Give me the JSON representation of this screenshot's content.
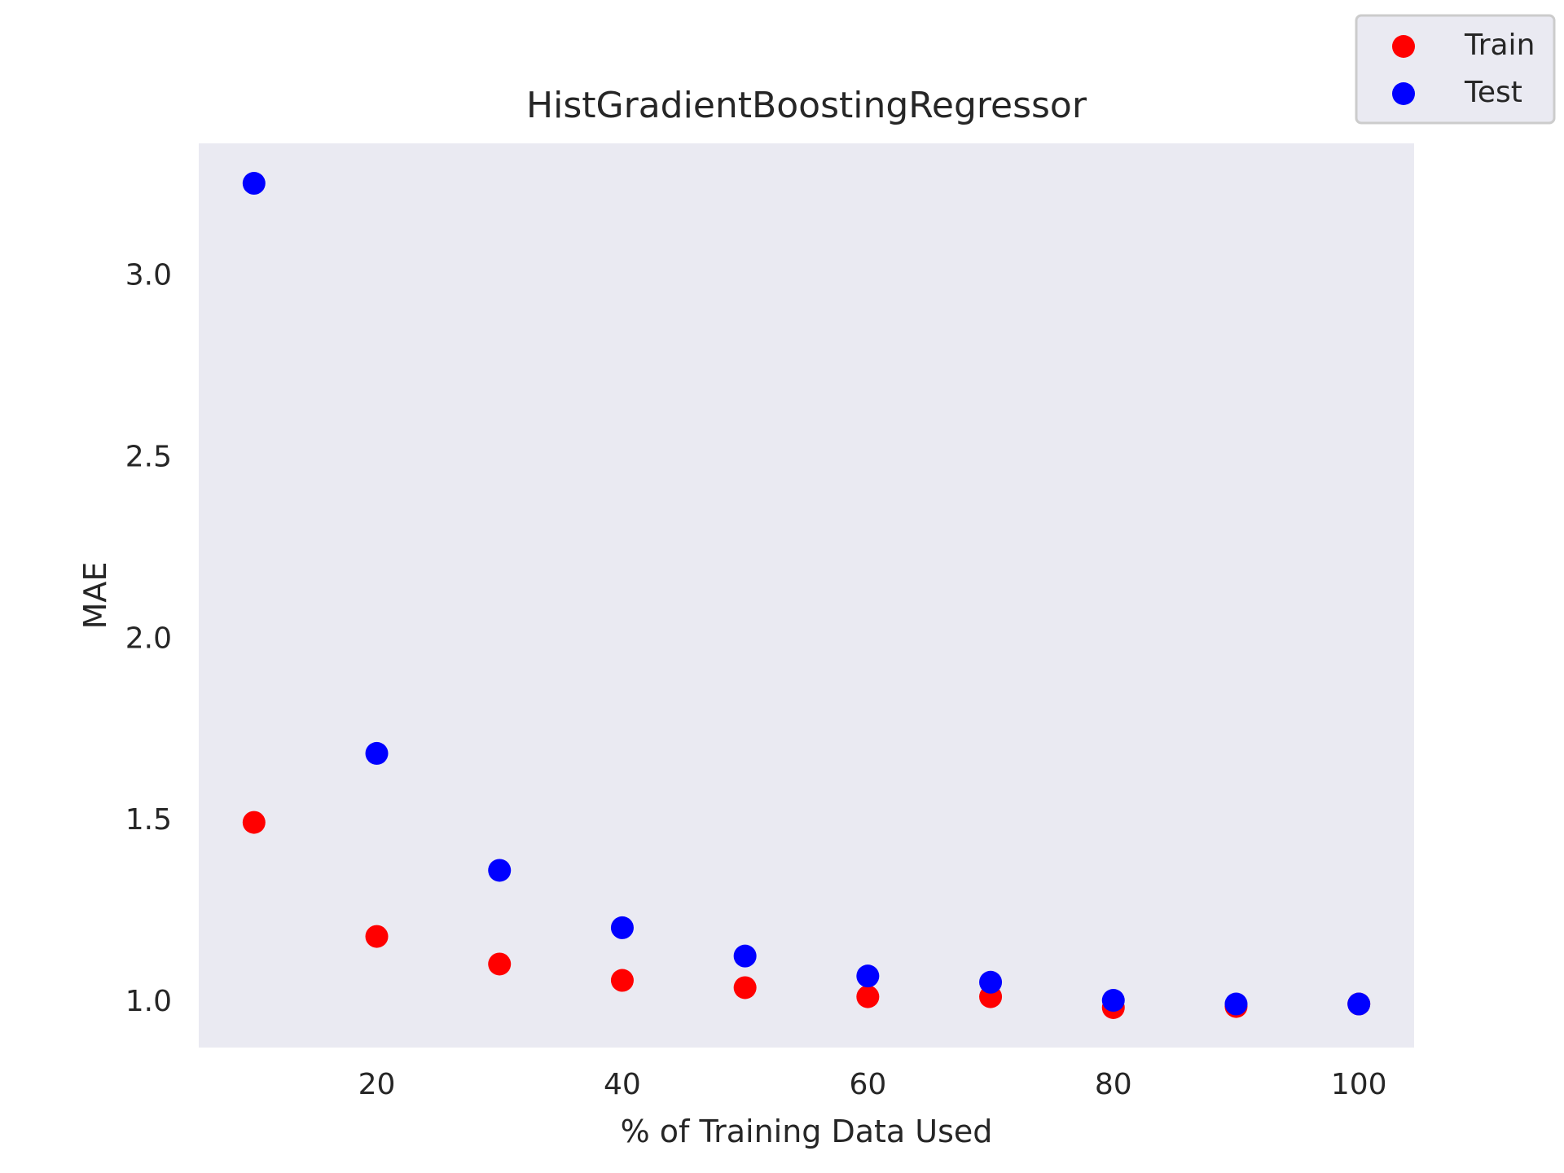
{
  "chart_data": {
    "type": "scatter",
    "title": "HistGradientBoostingRegressor",
    "xlabel": "% of Training Data Used",
    "ylabel": "MAE",
    "xlim": [
      5.5,
      104.5
    ],
    "ylim": [
      0.87,
      3.36
    ],
    "x_ticks": [
      20,
      40,
      60,
      80,
      100
    ],
    "y_ticks": [
      1.0,
      1.5,
      2.0,
      2.5,
      3.0
    ],
    "y_tick_labels": [
      "1.0",
      "1.5",
      "2.0",
      "2.5",
      "3.0"
    ],
    "grid": false,
    "background": "#eaeaf2",
    "legend_position": "top-right",
    "series": [
      {
        "name": "Train",
        "color": "#ff0000",
        "x": [
          10,
          20,
          30,
          40,
          50,
          60,
          70,
          80,
          90,
          100
        ],
        "y": [
          1.49,
          1.176,
          1.1,
          1.055,
          1.035,
          1.01,
          1.01,
          0.98,
          0.983,
          0.99
        ]
      },
      {
        "name": "Test",
        "color": "#0000ff",
        "x": [
          10,
          20,
          30,
          40,
          50,
          60,
          70,
          80,
          90,
          100
        ],
        "y": [
          3.25,
          1.68,
          1.358,
          1.2,
          1.122,
          1.067,
          1.05,
          1.0,
          0.99,
          0.99
        ]
      }
    ]
  }
}
